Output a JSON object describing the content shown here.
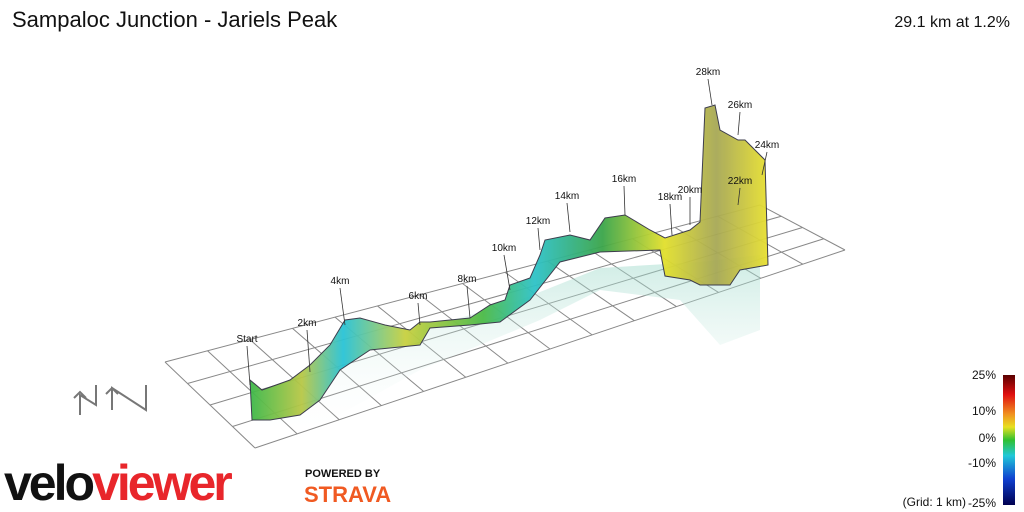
{
  "header": {
    "title": "Sampaloc Junction - Jariels Peak",
    "summary": "29.1 km at 1.2%"
  },
  "markers": [
    "Start",
    "2km",
    "4km",
    "6km",
    "8km",
    "10km",
    "12km",
    "14km",
    "16km",
    "18km",
    "20km",
    "22km",
    "24km",
    "26km",
    "28km"
  ],
  "legend": {
    "labels": [
      "25%",
      "10%",
      "0%",
      "-10%",
      "-25%"
    ],
    "grid_note": "(Grid: 1 km)"
  },
  "branding": {
    "logo_prefix": "velo",
    "logo_suffix": "viewer",
    "powered_by": "POWERED BY",
    "partner": "STRAVA"
  }
}
